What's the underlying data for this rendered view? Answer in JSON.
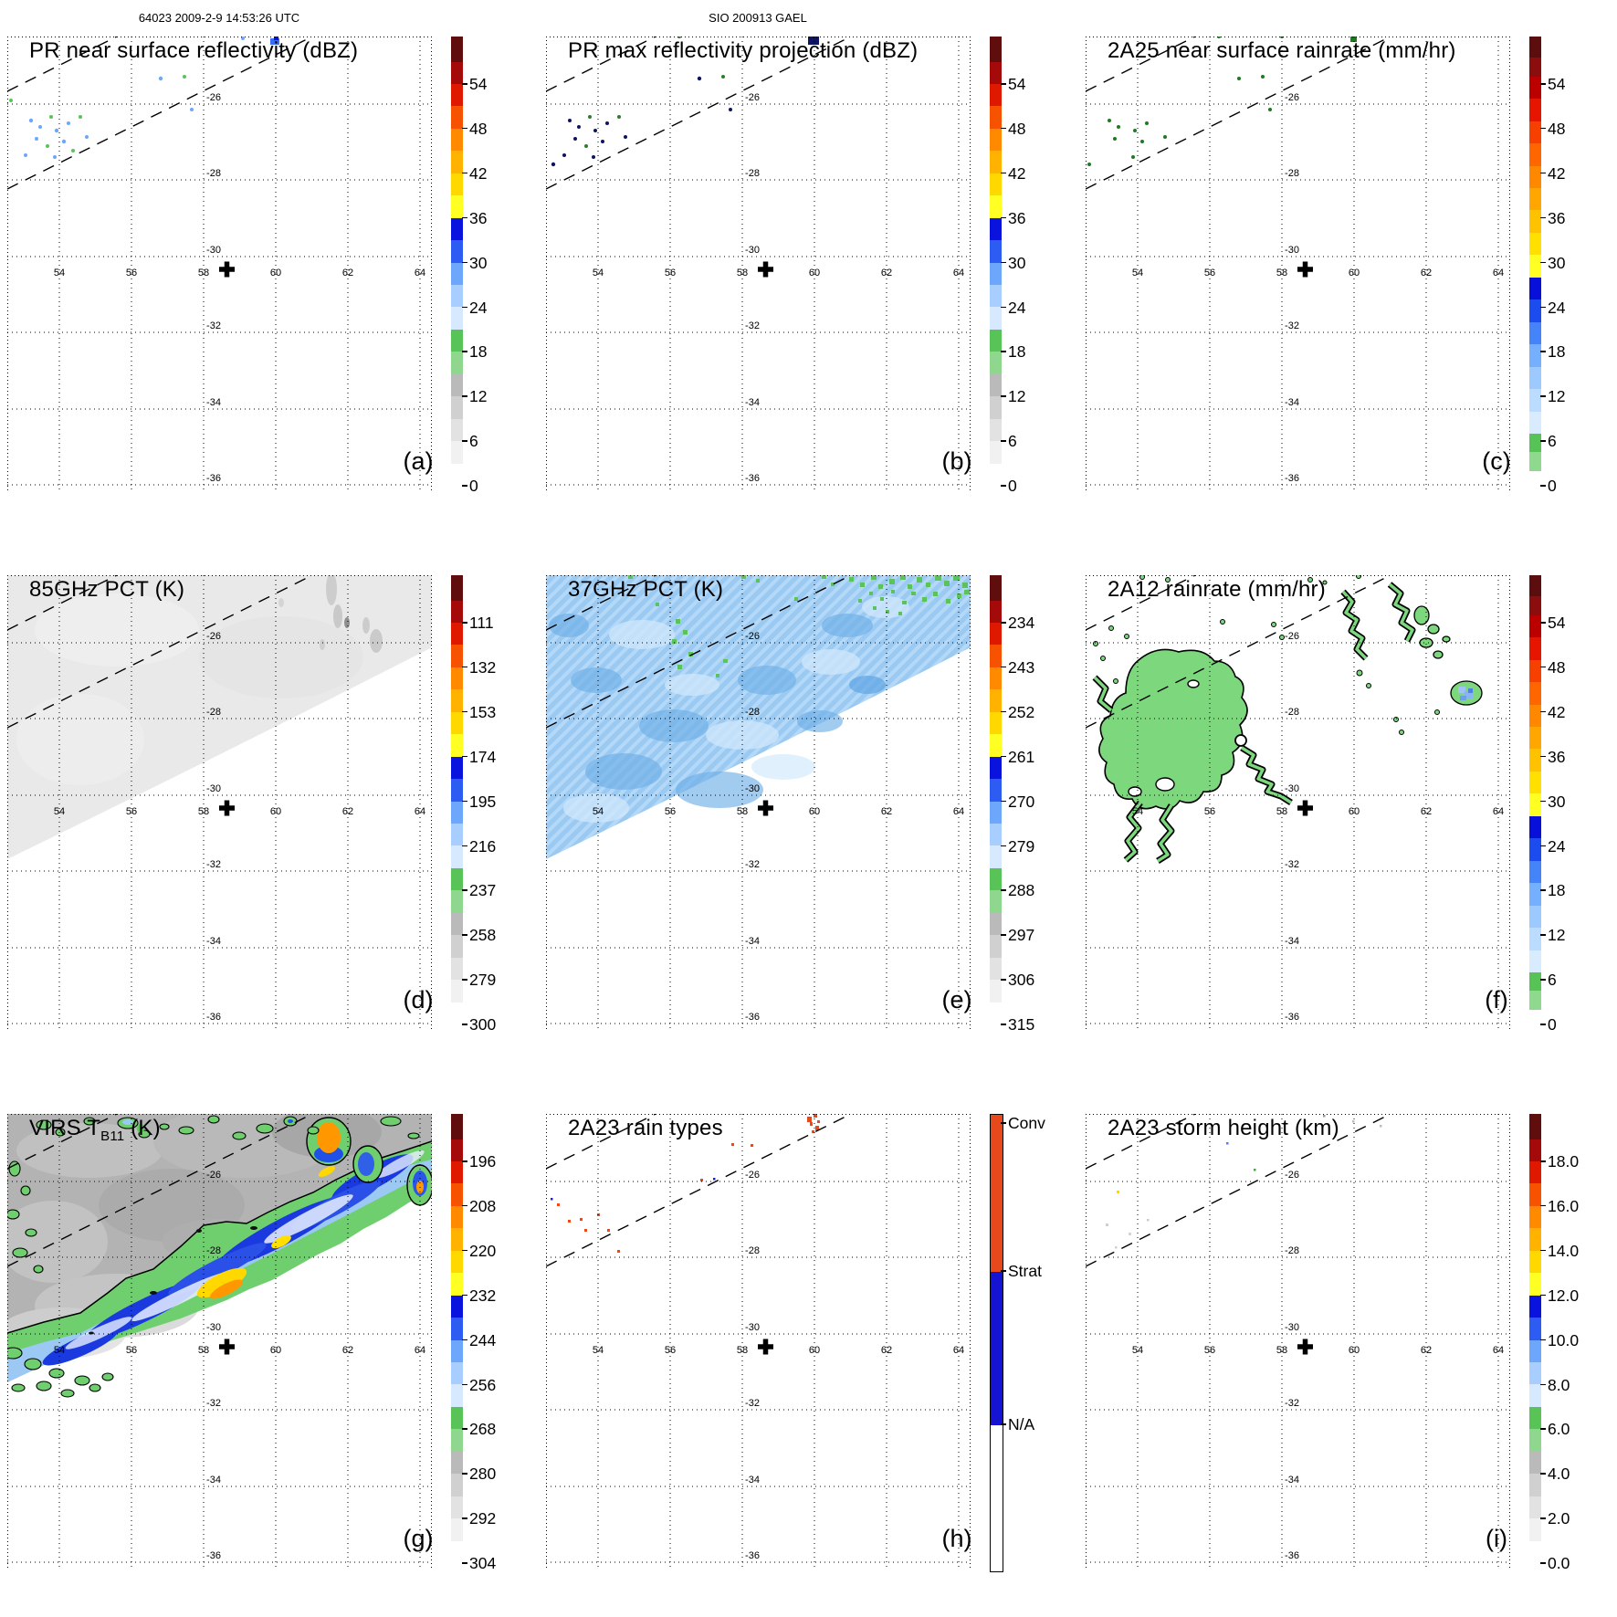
{
  "header": {
    "left": "64023 2009-2-9 14:53:26 UTC",
    "right": "SIO 200913 GAEL"
  },
  "map_grid": {
    "lon_labels": [
      "54",
      "56",
      "58",
      "60",
      "62",
      "64"
    ],
    "lat_labels": [
      "-26",
      "-28",
      "-30",
      "-32",
      "-34",
      "-36"
    ],
    "storm_center_symbol": "+"
  },
  "panels": [
    {
      "id": "a",
      "letter": "(a)",
      "title": "PR near surface reflectivity (dBZ)",
      "colorbar_ticks": [
        "54",
        "48",
        "42",
        "36",
        "30",
        "24",
        "18",
        "12",
        "6",
        "0"
      ]
    },
    {
      "id": "b",
      "letter": "(b)",
      "title": "PR max reflectivity projection (dBZ)",
      "colorbar_ticks": [
        "54",
        "48",
        "42",
        "36",
        "30",
        "24",
        "18",
        "12",
        "6",
        "0"
      ]
    },
    {
      "id": "c",
      "letter": "(c)",
      "title": "2A25 near surface rainrate (mm/hr)",
      "colorbar_ticks": [
        "54",
        "48",
        "42",
        "36",
        "30",
        "24",
        "18",
        "12",
        "6",
        "0"
      ]
    },
    {
      "id": "d",
      "letter": "(d)",
      "title": "85GHz PCT (K)",
      "colorbar_ticks": [
        "111",
        "132",
        "153",
        "174",
        "195",
        "216",
        "237",
        "258",
        "279",
        "300"
      ]
    },
    {
      "id": "e",
      "letter": "(e)",
      "title": "37GHz PCT (K)",
      "colorbar_ticks": [
        "234",
        "243",
        "252",
        "261",
        "270",
        "279",
        "288",
        "297",
        "306",
        "315"
      ]
    },
    {
      "id": "f",
      "letter": "(f)",
      "title": "2A12 rainrate (mm/hr)",
      "colorbar_ticks": [
        "54",
        "48",
        "42",
        "36",
        "30",
        "24",
        "18",
        "12",
        "6",
        "0"
      ]
    },
    {
      "id": "g",
      "letter": "(g)",
      "title_prefix": "VIRS T",
      "title_sub": "B11",
      "title_suffix": " (K)",
      "colorbar_ticks": [
        "196",
        "208",
        "220",
        "232",
        "244",
        "256",
        "268",
        "280",
        "292",
        "304"
      ]
    },
    {
      "id": "h",
      "letter": "(h)",
      "title": "2A23 rain types",
      "colorbar_labels": [
        "Conv",
        "Strat",
        "N/A"
      ]
    },
    {
      "id": "i",
      "letter": "(i)",
      "title": "2A23 storm height (km)",
      "colorbar_ticks": [
        "18.0",
        "16.0",
        "14.0",
        "12.0",
        "10.0",
        "8.0",
        "6.0",
        "4.0",
        "2.0",
        "0.0"
      ]
    }
  ],
  "chart_data": [
    {
      "panel": "(a)",
      "type": "heatmap",
      "title": "PR near surface reflectivity (dBZ)",
      "x_ticks": [
        54,
        56,
        58,
        60,
        62,
        64
      ],
      "y_ticks": [
        -26,
        -28,
        -30,
        -32,
        -34,
        -36
      ],
      "colorbar_range": [
        0,
        60
      ],
      "colorbar_ticks": [
        54,
        48,
        42,
        36,
        30,
        24,
        18,
        12,
        6,
        0
      ],
      "units": "dBZ",
      "content": "sparse weak echoes (18-30 dBZ) scattered near 53-56E / 26.5-28S and near 59.5E / 25S; PR swath edges shown as dashed diagonals; storm center cross at 58.6E 30.1S"
    },
    {
      "panel": "(b)",
      "type": "heatmap",
      "title": "PR max reflectivity projection (dBZ)",
      "x_ticks": [
        54,
        56,
        58,
        60,
        62,
        64
      ],
      "y_ticks": [
        -26,
        -28,
        -30,
        -32,
        -34,
        -36
      ],
      "colorbar_range": [
        0,
        60
      ],
      "colorbar_ticks": [
        54,
        48,
        42,
        36,
        30,
        24,
        18,
        12,
        6,
        0
      ],
      "units": "dBZ",
      "content": "same sparse echo locations as (a), mostly dark/navy dots"
    },
    {
      "panel": "(c)",
      "type": "heatmap",
      "title": "2A25 near surface rainrate (mm/hr)",
      "x_ticks": [
        54,
        56,
        58,
        60,
        62,
        64
      ],
      "y_ticks": [
        -26,
        -28,
        -30,
        -32,
        -34,
        -36
      ],
      "colorbar_range": [
        0,
        60
      ],
      "colorbar_ticks": [
        54,
        48,
        42,
        36,
        30,
        24,
        18,
        12,
        6,
        0
      ],
      "units": "mm/hr",
      "content": "sparse light rain pixels (green, <6 mm/hr) at same locations as (a)"
    },
    {
      "panel": "(d)",
      "type": "heatmap",
      "title": "85GHz PCT (K)",
      "x_ticks": [
        54,
        56,
        58,
        60,
        62,
        64
      ],
      "y_ticks": [
        -26,
        -28,
        -30,
        -32,
        -34,
        -36
      ],
      "colorbar_range": [
        100,
        310
      ],
      "colorbar_ticks": [
        111,
        132,
        153,
        174,
        195,
        216,
        237,
        258,
        279,
        300
      ],
      "units": "K",
      "content": "TMI swath (upper-left of diagonal) nearly uniform warm PCT ~270-290 K (light gray); faint cooler smudges near 62-63E 25-26.5S"
    },
    {
      "panel": "(e)",
      "type": "heatmap",
      "title": "37GHz PCT (K)",
      "x_ticks": [
        54,
        56,
        58,
        60,
        62,
        64
      ],
      "y_ticks": [
        -26,
        -28,
        -30,
        -32,
        -34,
        -36
      ],
      "colorbar_range": [
        230,
        316
      ],
      "colorbar_ticks": [
        234,
        243,
        252,
        261,
        270,
        279,
        288,
        297,
        306,
        315
      ],
      "units": "K",
      "content": "TMI swath filled with mottled light-blue PCT ~270-283 K; green pixels (~285-290 K) concentrated along top-right 62-65E 24-25.5S"
    },
    {
      "panel": "(f)",
      "type": "heatmap",
      "title": "2A12 rainrate (mm/hr)",
      "x_ticks": [
        54,
        56,
        58,
        60,
        62,
        64
      ],
      "y_ticks": [
        -26,
        -28,
        -30,
        -32,
        -34,
        -36
      ],
      "colorbar_range": [
        0,
        60
      ],
      "colorbar_ticks": [
        54,
        48,
        42,
        36,
        30,
        24,
        18,
        12,
        6,
        0
      ],
      "units": "mm/hr",
      "content": "black-outlined light-rain (green <6 mm/hr) regions: large blob 54-56.5E 26.5-29S with squiggly tails to 30.5S; bead chains near 58.5-60E 25-27S; small cell with ~12-18 mm/hr blue core at 63.7E 26.5S"
    },
    {
      "panel": "(g)",
      "type": "heatmap",
      "title": "VIRS TB11 (K)",
      "x_ticks": [
        54,
        56,
        58,
        60,
        62,
        64
      ],
      "y_ticks": [
        -26,
        -28,
        -30,
        -32,
        -34,
        -36
      ],
      "colorbar_range": [
        190,
        308
      ],
      "colorbar_ticks": [
        196,
        208,
        220,
        232,
        244,
        256,
        268,
        280,
        292,
        304
      ],
      "units": "K",
      "content": "IR image: warm gray background (~280-300 K) with cold cloud band (green 266-277 K, blue 232-256 K, yellow/orange 208-230 K cores) running along swath edge from 54E 30S to 64E 24.5S; large orange cold core near 61.5E 25S"
    },
    {
      "panel": "(h)",
      "type": "heatmap",
      "title": "2A23 rain types",
      "x_ticks": [
        54,
        56,
        58,
        60,
        62,
        64
      ],
      "y_ticks": [
        -26,
        -28,
        -30,
        -32,
        -34,
        -36
      ],
      "colorbar_categories": [
        "Conv",
        "Strat",
        "N/A"
      ],
      "content": "scattered convective (orange-red) pixels near 52.5-55E 26.5-28.5S and a cluster at 59.3E 24.6S; two stratiform (blue) pixels near 56.7E 26S and 52.6E 25.7S"
    },
    {
      "panel": "(i)",
      "type": "heatmap",
      "title": "2A23 storm height (km)",
      "x_ticks": [
        54,
        56,
        58,
        60,
        62,
        64
      ],
      "y_ticks": [
        -26,
        -28,
        -30,
        -32,
        -34,
        -36
      ],
      "colorbar_range": [
        0,
        20
      ],
      "colorbar_ticks": [
        18,
        16,
        14,
        12,
        10,
        8,
        6,
        4,
        2,
        0
      ],
      "units": "km",
      "content": "nearly empty; a few isolated specks (one ~12 km yellow near 53.5E 26.2S, faint low gray echoes 53-55E 26.5-28S)"
    }
  ]
}
